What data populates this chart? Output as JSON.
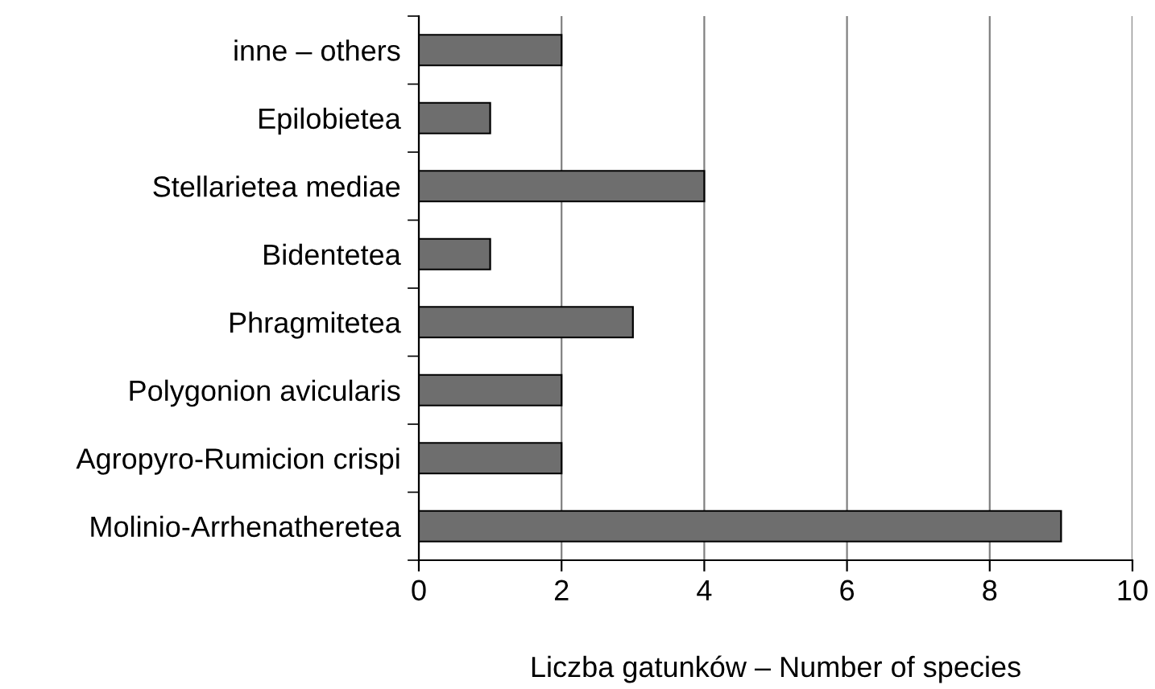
{
  "chart_data": {
    "type": "bar",
    "orientation": "horizontal",
    "xlabel": "Liczba gatunków – Number of species",
    "categories": [
      "inne – others",
      "Epilobietea",
      "Stellarietea mediae",
      "Bidentetea",
      "Phragmitetea",
      "Polygonion avicularis",
      "Agropyro-Rumicion crispi",
      "Molinio-Arrhenatheretea"
    ],
    "values": [
      2,
      1,
      4,
      1,
      3,
      2,
      2,
      9
    ],
    "color": "#6e6e6e",
    "xlim": [
      0,
      10
    ],
    "xticks": [
      0,
      2,
      4,
      6,
      8,
      10
    ],
    "grid": "x"
  }
}
